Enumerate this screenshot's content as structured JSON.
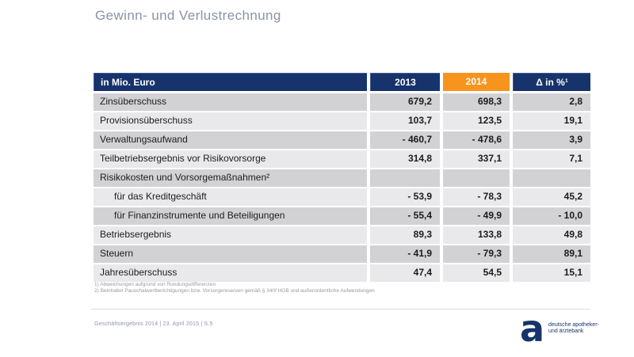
{
  "slide": {
    "title": "Gewinn- und Verlustrechnung"
  },
  "table": {
    "header": {
      "label": "in Mio. Euro",
      "y2013": "2013",
      "y2014": "2014",
      "delta": "Δ in %¹"
    },
    "rows": [
      {
        "label": "Zinsüberschuss",
        "v2013": "679,2",
        "v2014": "698,3",
        "delta": "2,8"
      },
      {
        "label": "Provisionsüberschuss",
        "v2013": "103,7",
        "v2014": "123,5",
        "delta": "19,1"
      },
      {
        "label": "Verwaltungsaufwand",
        "v2013": "- 460,7",
        "v2014": "- 478,6",
        "delta": "3,9"
      },
      {
        "label": "Teilbetriebsergebnis vor Risikovorsorge",
        "v2013": "314,8",
        "v2014": "337,1",
        "delta": "7,1"
      },
      {
        "label": "Risikokosten und Vorsorgemaßnahmen²",
        "v2013": "",
        "v2014": "",
        "delta": ""
      },
      {
        "label": "für das Kreditgeschäft",
        "v2013": "- 53,9",
        "v2014": "- 78,3",
        "delta": "45,2"
      },
      {
        "label": "für Finanzinstrumente und Beteiligungen",
        "v2013": "- 55,4",
        "v2014": "- 49,9",
        "delta": "- 10,0"
      },
      {
        "label": "Betriebsergebnis",
        "v2013": "89,3",
        "v2014": "133,8",
        "delta": "49,8"
      },
      {
        "label": "Steuern",
        "v2013": "- 41,9",
        "v2014": "- 79,3",
        "delta": "89,1"
      },
      {
        "label": "Jahresüberschuss",
        "v2013": "47,4",
        "v2014": "54,5",
        "delta": "15,1"
      }
    ]
  },
  "footnotes": {
    "line1": "1) Abweichungen aufgrund von Rundungsdifferenzen",
    "line2": "2) Beinhaltet Pauschalwertberichtigungen bzw. Vorsorgereserven gemäß § 340f HGB und außerordentliche Aufwendungen"
  },
  "footer": {
    "left_text": "Geschäftsergebnis 2014 | 23. April 2015 | S.5",
    "logo_letter": "a",
    "logo_line1": "deutsche apotheker-",
    "logo_line2": "und ärztebank"
  },
  "colors": {
    "navy": "#17336b",
    "orange": "#f7941d",
    "row_dark": "#d2d2d4",
    "row_light": "#e9e9eb",
    "title_gray": "#8d92a4"
  }
}
